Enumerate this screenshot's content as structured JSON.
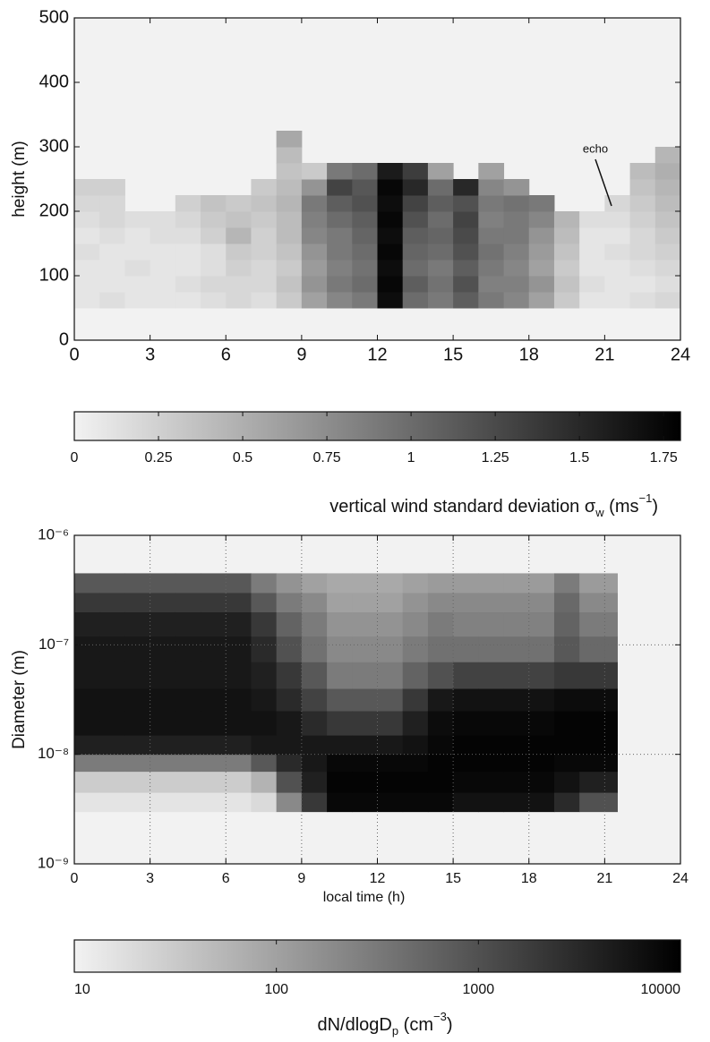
{
  "chart_data": [
    {
      "type": "heatmap",
      "ylabel": "height (m)",
      "annotation": "echo",
      "xlim": [
        0,
        24
      ],
      "xticks": [
        0,
        3,
        6,
        9,
        12,
        15,
        18,
        21,
        24
      ],
      "ylim": [
        0,
        500
      ],
      "yticks": [
        0,
        100,
        200,
        300,
        400,
        500
      ],
      "yscale": "linear",
      "grid": false,
      "x_edges": [
        0,
        1,
        2,
        3,
        4,
        5,
        6,
        7,
        8,
        9,
        10,
        11,
        12,
        13,
        14,
        15,
        16,
        17,
        18,
        19,
        20,
        21,
        22,
        23,
        24
      ],
      "y_edges": [
        50,
        75,
        100,
        125,
        150,
        175,
        200,
        225,
        250,
        275,
        300,
        325
      ],
      "z": [
        [
          0.1,
          0.1,
          0.1,
          0.15,
          0.1,
          0.15,
          0.2,
          0.25,
          null,
          null,
          null
        ],
        [
          0.15,
          0.1,
          0.1,
          0.1,
          0.15,
          0.2,
          0.2,
          0.25,
          null,
          null,
          null
        ],
        [
          0.1,
          0.1,
          0.15,
          0.1,
          0.1,
          0.15,
          null,
          null,
          null,
          null,
          null
        ],
        [
          0.1,
          0.1,
          0.1,
          0.1,
          0.15,
          0.15,
          null,
          null,
          null,
          null,
          null
        ],
        [
          0.1,
          0.15,
          0.1,
          0.1,
          0.15,
          0.2,
          0.25,
          null,
          null,
          null,
          null
        ],
        [
          0.15,
          0.2,
          0.15,
          0.15,
          0.25,
          0.3,
          0.35,
          null,
          null,
          null,
          null
        ],
        [
          0.2,
          0.2,
          0.25,
          0.3,
          0.45,
          0.35,
          0.3,
          null,
          null,
          null,
          null
        ],
        [
          0.15,
          0.2,
          0.2,
          0.25,
          0.25,
          0.3,
          0.35,
          0.3,
          null,
          null,
          null
        ],
        [
          0.3,
          0.35,
          0.3,
          0.35,
          0.4,
          0.4,
          0.45,
          0.4,
          0.35,
          0.4,
          0.55
        ],
        [
          0.6,
          0.7,
          0.65,
          0.7,
          0.8,
          0.85,
          0.9,
          0.7,
          0.3,
          null,
          null
        ],
        [
          0.8,
          0.9,
          0.85,
          0.9,
          0.9,
          1.0,
          1.1,
          1.3,
          0.9,
          null,
          null
        ],
        [
          0.9,
          1.0,
          0.95,
          1.0,
          1.05,
          1.1,
          1.2,
          1.15,
          1.0,
          null,
          null
        ],
        [
          1.7,
          1.75,
          1.7,
          1.75,
          1.7,
          1.75,
          1.7,
          1.75,
          1.6,
          null,
          null
        ],
        [
          1.0,
          1.1,
          1.0,
          1.05,
          1.1,
          1.2,
          1.3,
          1.5,
          1.35,
          null,
          null
        ],
        [
          0.9,
          0.95,
          0.9,
          1.0,
          1.05,
          1.0,
          1.1,
          1.0,
          0.6,
          null,
          null
        ],
        [
          1.1,
          1.2,
          1.1,
          1.2,
          1.25,
          1.3,
          1.2,
          1.5,
          null,
          null,
          null
        ],
        [
          0.9,
          0.85,
          0.9,
          0.95,
          0.9,
          0.85,
          0.9,
          0.8,
          0.6,
          null,
          null
        ],
        [
          0.8,
          0.85,
          0.8,
          0.85,
          0.9,
          0.9,
          0.95,
          0.7,
          null,
          null,
          null
        ],
        [
          0.6,
          0.7,
          0.6,
          0.65,
          0.7,
          0.8,
          0.9,
          null,
          null,
          null,
          null
        ],
        [
          0.3,
          0.35,
          0.3,
          0.35,
          0.4,
          0.45,
          null,
          null,
          null,
          null,
          null
        ],
        [
          0.1,
          0.15,
          0.1,
          0.1,
          0.1,
          0.15,
          null,
          null,
          null,
          null,
          null
        ],
        [
          0.1,
          0.1,
          0.1,
          0.15,
          0.1,
          0.15,
          0.2,
          null,
          null,
          null,
          null
        ],
        [
          0.15,
          0.1,
          0.15,
          0.2,
          0.2,
          0.25,
          0.3,
          0.35,
          0.4,
          null,
          null
        ],
        [
          0.2,
          0.15,
          0.2,
          0.25,
          0.3,
          0.35,
          0.4,
          0.45,
          0.5,
          0.45,
          null
        ]
      ],
      "colormap": [
        "#f2f2f2",
        "#000000"
      ],
      "colorbar": {
        "scale": "linear",
        "clim": [
          0,
          1.8
        ],
        "ticks": [
          0,
          0.25,
          0.5,
          0.75,
          1,
          1.25,
          1.5,
          1.75
        ],
        "label": [
          "vertical wind standard deviation σ",
          "w",
          " (ms",
          "−1",
          ")"
        ]
      }
    },
    {
      "type": "heatmap",
      "ylabel": "Diameter (m)",
      "xlabel": "local time (h)",
      "xlim": [
        0,
        24
      ],
      "xticks": [
        0,
        3,
        6,
        9,
        12,
        15,
        18,
        21,
        24
      ],
      "ylim": [
        1e-09,
        1e-06
      ],
      "yticks": [
        {
          "value": 1e-09,
          "label": "10⁻⁹"
        },
        {
          "value": 1e-08,
          "label": "10⁻⁸"
        },
        {
          "value": 1e-07,
          "label": "10⁻⁷"
        },
        {
          "value": 1e-06,
          "label": "10⁻⁶"
        }
      ],
      "yscale": "log",
      "grid": true,
      "x_edges": [
        0,
        1,
        2,
        3,
        4,
        5,
        6,
        7,
        8,
        9,
        10,
        11,
        12,
        13,
        14,
        15,
        16,
        17,
        18,
        19,
        20,
        21,
        21.5
      ],
      "y_edges": [
        3e-09,
        4.5e-09,
        7e-09,
        1e-08,
        1.5e-08,
        2.5e-08,
        4e-08,
        7e-08,
        1.2e-07,
        2e-07,
        3e-07,
        4.5e-07
      ],
      "z": [
        [
          15,
          30,
          300,
          4000,
          6000,
          6000,
          5000,
          5000,
          4000,
          2000,
          800
        ],
        [
          15,
          30,
          300,
          4000,
          6000,
          6000,
          5000,
          5000,
          4000,
          2000,
          800
        ],
        [
          15,
          30,
          300,
          4000,
          6000,
          6000,
          5000,
          5000,
          4000,
          2000,
          800
        ],
        [
          15,
          30,
          300,
          4000,
          6000,
          6000,
          5000,
          5000,
          4000,
          2000,
          800
        ],
        [
          15,
          30,
          300,
          4000,
          6000,
          6000,
          5000,
          5000,
          4000,
          2000,
          800
        ],
        [
          15,
          30,
          300,
          4000,
          6000,
          6000,
          5000,
          5000,
          4000,
          2000,
          800
        ],
        [
          15,
          30,
          300,
          4000,
          6000,
          6000,
          5000,
          5000,
          4000,
          2000,
          800
        ],
        [
          20,
          60,
          800,
          5000,
          6000,
          5000,
          4000,
          3000,
          2000,
          800,
          300
        ],
        [
          200,
          1000,
          3000,
          5000,
          5000,
          3000,
          2000,
          1000,
          600,
          300,
          150
        ],
        [
          2000,
          4000,
          5000,
          5000,
          3000,
          1500,
          800,
          400,
          300,
          200,
          100
        ],
        [
          8000,
          9000,
          8000,
          5000,
          2000,
          800,
          300,
          200,
          150,
          100,
          80
        ],
        [
          8000,
          9000,
          8000,
          5000,
          2000,
          800,
          300,
          200,
          150,
          100,
          80
        ],
        [
          8000,
          9000,
          8000,
          5000,
          2000,
          800,
          300,
          200,
          150,
          100,
          80
        ],
        [
          8000,
          9000,
          8000,
          6000,
          4000,
          2000,
          600,
          300,
          200,
          150,
          100
        ],
        [
          8000,
          9000,
          9000,
          8000,
          7000,
          5000,
          1000,
          400,
          300,
          200,
          120
        ],
        [
          6000,
          8000,
          9000,
          9000,
          8000,
          6000,
          1500,
          400,
          250,
          200,
          120
        ],
        [
          6000,
          8000,
          9000,
          9000,
          8000,
          6000,
          1500,
          400,
          250,
          200,
          120
        ],
        [
          6000,
          8000,
          9000,
          9000,
          8000,
          6000,
          1500,
          400,
          250,
          200,
          120
        ],
        [
          6000,
          8000,
          9000,
          9000,
          8000,
          6000,
          1500,
          400,
          250,
          200,
          120
        ],
        [
          3000,
          6000,
          8000,
          9000,
          9000,
          7000,
          2000,
          800,
          600,
          500,
          300
        ],
        [
          1000,
          4000,
          8000,
          9000,
          9000,
          7000,
          2000,
          500,
          300,
          200,
          120
        ],
        [
          1000,
          4000,
          8000,
          9000,
          9000,
          7000,
          2000,
          500,
          300,
          200,
          120
        ]
      ],
      "colormap": [
        "#f2f2f2",
        "#000000"
      ],
      "colorbar": {
        "scale": "log",
        "clim": [
          10,
          10000
        ],
        "ticks": [
          10,
          100,
          1000,
          10000
        ],
        "label": [
          "dN/dlogD",
          "p",
          " (cm",
          "−3",
          ")"
        ]
      }
    }
  ]
}
